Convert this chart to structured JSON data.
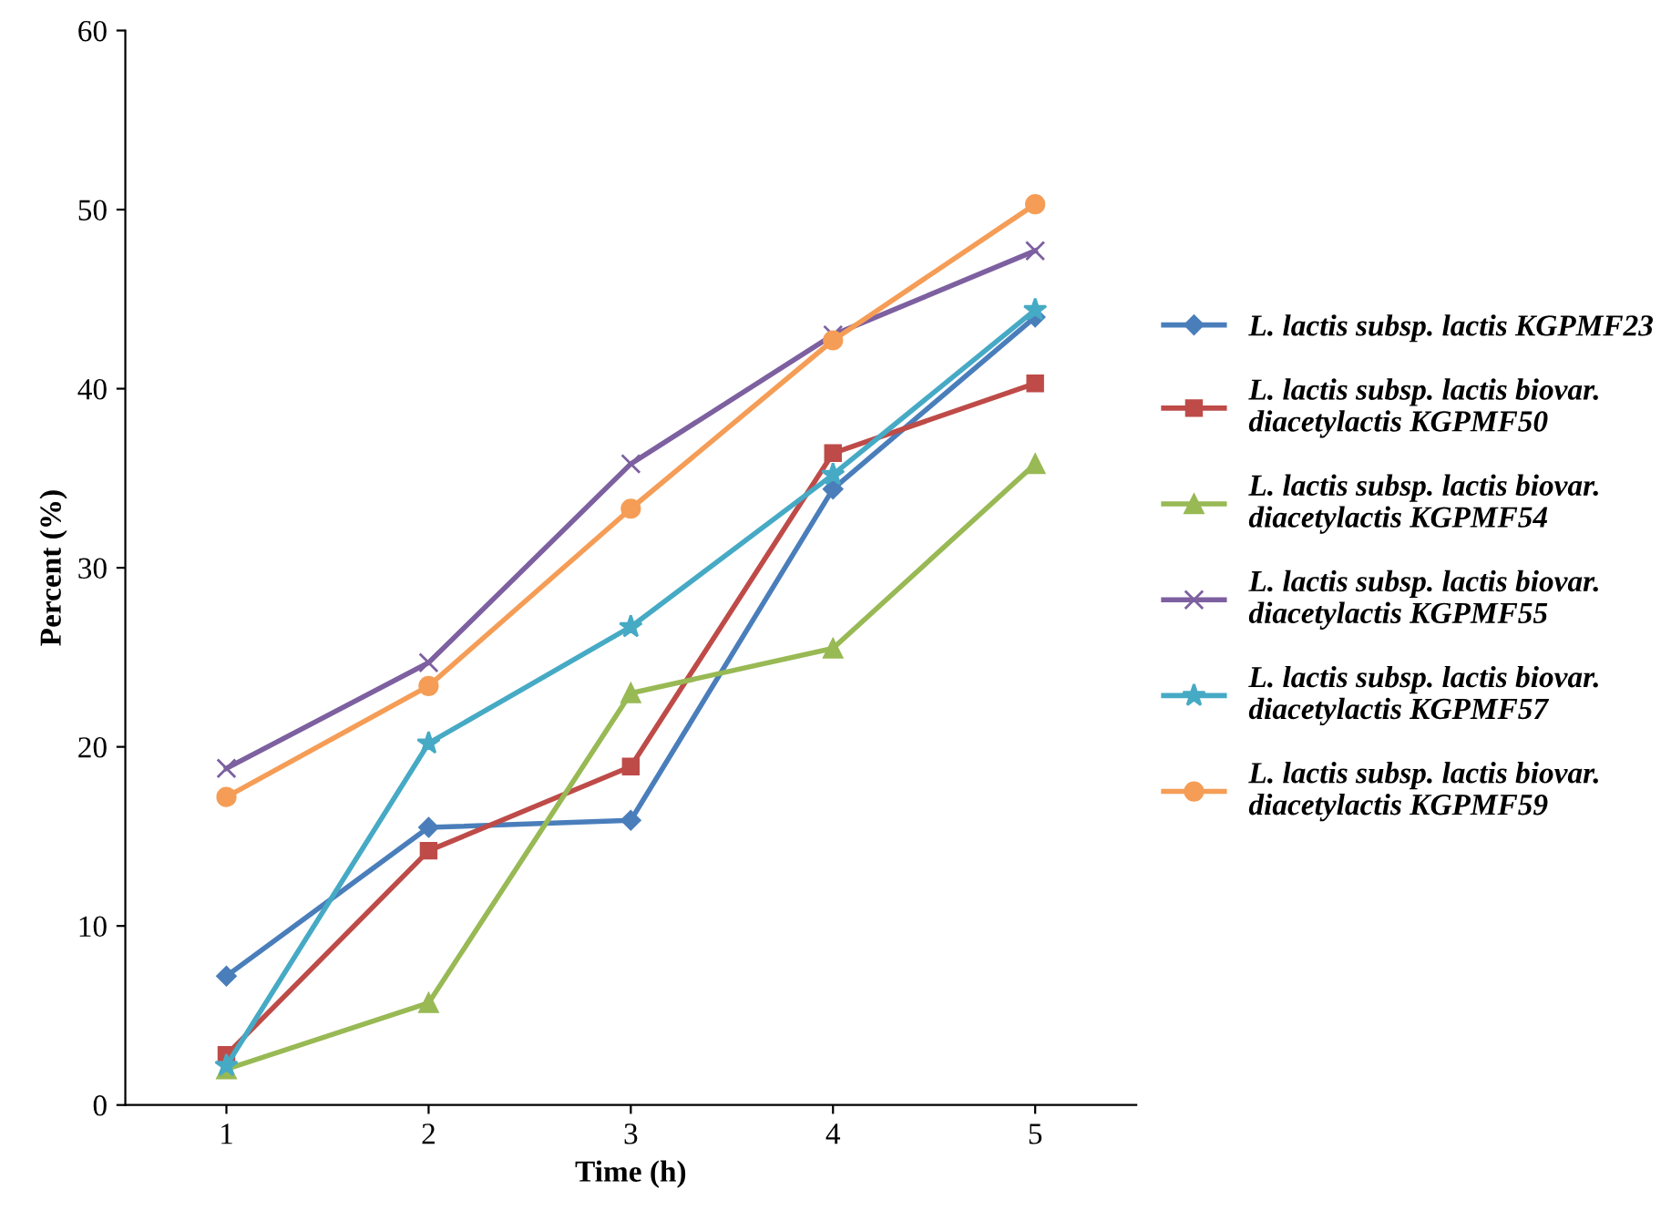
{
  "chart_data": {
    "type": "line",
    "xlabel": "Time (h)",
    "ylabel": "Percent (%)",
    "categories": [
      "1",
      "2",
      "3",
      "4",
      "5"
    ],
    "ylim": [
      0,
      60
    ],
    "yticks": [
      0,
      10,
      20,
      30,
      40,
      50,
      60
    ],
    "grid": false,
    "legend": "right",
    "series": [
      {
        "name": "L. lactis subsp. lactis KGPMF23",
        "color": "#4a7ebb",
        "marker": "diamond",
        "values": [
          7.2,
          15.5,
          15.9,
          34.4,
          44.0
        ]
      },
      {
        "name": "L. lactis subsp. lactis biovar. diacetylactis KGPMF50",
        "color": "#be4b48",
        "marker": "square",
        "values": [
          2.8,
          14.2,
          18.9,
          36.4,
          40.3
        ]
      },
      {
        "name": "L. lactis subsp. lactis biovar. diacetylactis KGPMF54",
        "color": "#98b954",
        "marker": "triangle",
        "values": [
          2.0,
          5.7,
          23.0,
          25.5,
          35.8
        ]
      },
      {
        "name": "L. lactis subsp. lactis biovar. diacetylactis KGPMF55",
        "color": "#7d60a0",
        "marker": "cross",
        "values": [
          18.8,
          24.7,
          35.8,
          43.0,
          47.7
        ]
      },
      {
        "name": "L. lactis subsp. lactis biovar. diacetylactis KGPMF57",
        "color": "#46aac5",
        "marker": "star",
        "values": [
          2.2,
          20.2,
          26.7,
          35.2,
          44.4
        ]
      },
      {
        "name": "L. lactis subsp. lactis biovar. diacetylactis KGPMF59",
        "color": "#f59d56",
        "marker": "circle",
        "values": [
          17.2,
          23.4,
          33.3,
          42.7,
          50.3
        ]
      }
    ]
  }
}
